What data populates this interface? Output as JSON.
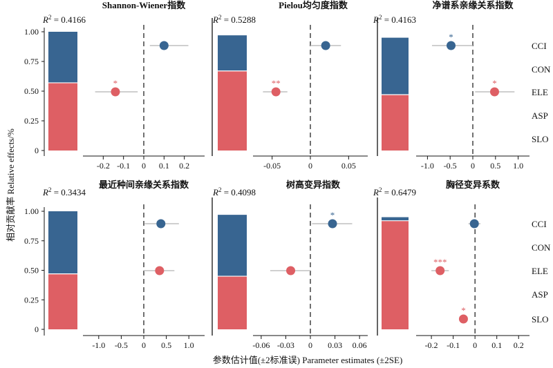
{
  "figure": {
    "y_axis_label": "相对贡献率 Relative effects/%",
    "x_axis_label": "参数估计值(±2标准误) Parameter estimates (±2SE)",
    "predictors": [
      "CCI",
      "CON",
      "ELE",
      "ASP",
      "SLO"
    ],
    "colors": {
      "blue": "#386591",
      "red": "#de5f64",
      "ci": "#bfbfbf"
    }
  },
  "chart_data": [
    {
      "type": "bar",
      "title": "Shannon-Wiener指数",
      "r2_label": "R² = 0.4166",
      "stacked_relative_effects": {
        "red": 0.57,
        "blue": 0.43
      },
      "bar_yticks": [
        "0",
        "0.25",
        "0.50",
        "0.75",
        "1.00"
      ],
      "xlim": [
        -0.3,
        0.3
      ],
      "xticks": [
        "-0.2",
        "-0.1",
        "0",
        "0.1",
        "0.2"
      ],
      "xtick_values": [
        -0.2,
        -0.1,
        0,
        0.1,
        0.2
      ],
      "points": [
        {
          "predictor": "CCI",
          "estimate": 0.1,
          "lo": 0.03,
          "hi": 0.22,
          "color": "blue",
          "sig": ""
        },
        {
          "predictor": "ELE",
          "estimate": -0.14,
          "lo": -0.24,
          "hi": -0.03,
          "color": "red",
          "sig": "*"
        }
      ]
    },
    {
      "type": "bar",
      "title": "Pielou均匀度指数",
      "r2_label": "R² = 0.5288",
      "stacked_relative_effects": {
        "red": 0.67,
        "blue": 0.3
      },
      "bar_yticks": [
        "0",
        "0.25",
        "0.50",
        "0.75",
        "1.00"
      ],
      "xlim": [
        -0.075,
        0.075
      ],
      "xticks": [
        "-0.05",
        "0",
        "0.05"
      ],
      "xtick_values": [
        -0.05,
        0,
        0.05
      ],
      "points": [
        {
          "predictor": "CCI",
          "estimate": 0.02,
          "lo": 0.0,
          "hi": 0.04,
          "color": "blue",
          "sig": ""
        },
        {
          "predictor": "ELE",
          "estimate": -0.045,
          "lo": -0.062,
          "hi": -0.03,
          "color": "red",
          "sig": "**"
        }
      ]
    },
    {
      "type": "bar",
      "title": "净谱系亲缘关系指数",
      "r2_label": "R² = 0.4163",
      "stacked_relative_effects": {
        "red": 0.47,
        "blue": 0.48
      },
      "bar_yticks": [
        "0",
        "0.25",
        "0.50",
        "0.75",
        "1.00"
      ],
      "xlim": [
        -1.25,
        1.25
      ],
      "xticks": [
        "-1.0",
        "-0.5",
        "0",
        "0.5",
        "1.0"
      ],
      "xtick_values": [
        -1.0,
        -0.5,
        0,
        0.5,
        1.0
      ],
      "points": [
        {
          "predictor": "CCI",
          "estimate": -0.48,
          "lo": -0.9,
          "hi": 0.0,
          "color": "blue",
          "sig": "*"
        },
        {
          "predictor": "ELE",
          "estimate": 0.48,
          "lo": 0.05,
          "hi": 0.92,
          "color": "red",
          "sig": "*"
        }
      ]
    },
    {
      "type": "bar",
      "title": "最近种间亲缘关系指数",
      "r2_label": "R² = 0.3434",
      "stacked_relative_effects": {
        "red": 0.47,
        "blue": 0.53
      },
      "bar_yticks": [
        "0",
        "0.25",
        "0.50",
        "0.75",
        "1.00"
      ],
      "xlim": [
        -1.35,
        1.35
      ],
      "xticks": [
        "-1.0",
        "-0.5",
        "0",
        "0.5",
        "1.0"
      ],
      "xtick_values": [
        -1.0,
        -0.5,
        0,
        0.5,
        1.0
      ],
      "points": [
        {
          "predictor": "CCI",
          "estimate": 0.38,
          "lo": 0.02,
          "hi": 0.78,
          "color": "blue",
          "sig": ""
        },
        {
          "predictor": "ELE",
          "estimate": 0.35,
          "lo": 0.0,
          "hi": 0.68,
          "color": "red",
          "sig": ""
        }
      ]
    },
    {
      "type": "bar",
      "title": "树高变异指数",
      "r2_label": "R² = 0.4098",
      "stacked_relative_effects": {
        "red": 0.45,
        "blue": 0.52
      },
      "bar_yticks": [
        "0",
        "0.25",
        "0.50",
        "0.75",
        "1.00"
      ],
      "xlim": [
        -0.07,
        0.07
      ],
      "xticks": [
        "-0.06",
        "-0.03",
        "0",
        "0.03",
        "0.06"
      ],
      "xtick_values": [
        -0.06,
        -0.03,
        0,
        0.03,
        0.06
      ],
      "points": [
        {
          "predictor": "CCI",
          "estimate": 0.027,
          "lo": 0.002,
          "hi": 0.051,
          "color": "blue",
          "sig": "*"
        },
        {
          "predictor": "ELE",
          "estimate": -0.024,
          "lo": -0.049,
          "hi": 0.0,
          "color": "red",
          "sig": ""
        }
      ]
    },
    {
      "type": "bar",
      "title": "胸径变异系数",
      "r2_label": "R² = 0.6479",
      "stacked_relative_effects": {
        "red": 0.92,
        "blue": 0.03
      },
      "bar_yticks": [
        "0",
        "0.25",
        "0.50",
        "0.75",
        "1.00"
      ],
      "xlim": [
        -0.27,
        0.25
      ],
      "xticks": [
        "-0.2",
        "-0.1",
        "0",
        "0.1",
        "0.2"
      ],
      "xtick_values": [
        -0.2,
        -0.1,
        0,
        0.1,
        0.2
      ],
      "points": [
        {
          "predictor": "CCI",
          "estimate": -0.003,
          "lo": -0.03,
          "hi": 0.025,
          "color": "blue",
          "sig": ""
        },
        {
          "predictor": "ELE",
          "estimate": -0.16,
          "lo": -0.2,
          "hi": -0.12,
          "color": "red",
          "sig": "***"
        },
        {
          "predictor": "SLO",
          "estimate": -0.053,
          "lo": -0.07,
          "hi": -0.035,
          "color": "red",
          "sig": "*"
        }
      ]
    }
  ]
}
